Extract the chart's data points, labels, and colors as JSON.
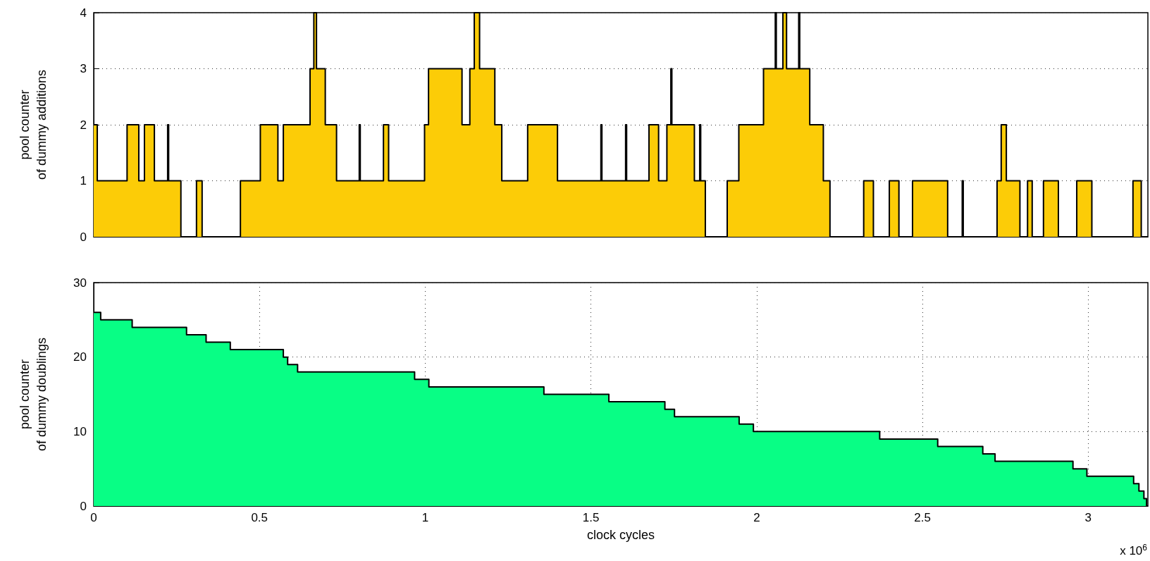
{
  "chart_data": [
    {
      "type": "area",
      "ylabel": "pool counter\nof dummy additions",
      "xlim": [
        0,
        3.18
      ],
      "xticks": [
        0,
        0.5,
        1,
        1.5,
        2,
        2.5,
        3
      ],
      "ylim": [
        0,
        4
      ],
      "yticks": [
        0,
        1,
        2,
        3,
        4
      ],
      "grid": "y",
      "tick_labels": "y",
      "series": [
        {
          "color": "#fccc07",
          "x": [
            0,
            0.0107,
            0.1006,
            0.136,
            0.153,
            0.183,
            0.223,
            0.226,
            0.263,
            0.31,
            0.327,
            0.4425,
            0.5026,
            0.5556,
            0.572,
            0.6526,
            0.664,
            0.672,
            0.6985,
            0.7325,
            0.801,
            0.804,
            0.874,
            0.8896,
            0.998,
            1.01,
            1.111,
            1.1346,
            1.148,
            1.164,
            1.21,
            1.231,
            1.309,
            1.399,
            1.53,
            1.533,
            1.6045,
            1.6075,
            1.675,
            1.704,
            1.729,
            1.741,
            1.744,
            1.812,
            1.828,
            1.831,
            1.845,
            1.911,
            1.946,
            2.0205,
            2.056,
            2.059,
            2.079,
            2.09,
            2.1267,
            2.1297,
            2.16,
            2.201,
            2.221,
            2.3227,
            2.352,
            2.4,
            2.429,
            2.47,
            2.576,
            2.62,
            2.623,
            2.725,
            2.7375,
            2.753,
            2.794,
            2.817,
            2.831,
            2.865,
            2.91,
            2.9654,
            3.011,
            3.135,
            3.16,
            3.18
          ],
          "values": [
            2,
            1,
            2,
            1,
            2,
            1,
            2,
            1,
            0,
            1,
            0,
            1,
            2,
            1,
            2,
            3,
            4,
            3,
            2,
            1,
            2,
            1,
            2,
            1,
            2,
            3,
            2,
            3,
            4,
            3,
            2,
            1,
            2,
            1,
            2,
            1,
            2,
            1,
            2,
            1,
            2,
            3,
            2,
            1,
            2,
            1,
            0,
            1,
            2,
            3,
            4,
            3,
            4,
            3,
            4,
            3,
            2,
            1,
            0,
            1,
            0,
            1,
            0,
            1,
            0,
            1,
            0,
            1,
            2,
            1,
            0,
            1,
            0,
            1,
            0,
            1,
            0,
            1,
            0,
            0
          ]
        }
      ]
    },
    {
      "type": "area",
      "xlabel": "clock cycles",
      "ylabel": "pool counter\nof dummy doublings",
      "annotations": [
        "x 10$^{6}$"
      ],
      "xlim": [
        0,
        3.18
      ],
      "xticks": [
        0,
        0.5,
        1,
        1.5,
        2,
        2.5,
        3
      ],
      "ylim": [
        0,
        30
      ],
      "yticks": [
        0,
        10,
        20,
        30
      ],
      "grid": true,
      "series": [
        {
          "color": "#08fe85",
          "x": [
            0,
            0.021,
            0.116,
            0.28,
            0.339,
            0.412,
            0.572,
            0.585,
            0.615,
            0.968,
            1.011,
            1.358,
            1.554,
            1.723,
            1.752,
            1.947,
            1.99,
            2.371,
            2.546,
            2.682,
            2.719,
            2.954,
            2.996,
            3.137,
            3.153,
            3.168,
            3.176,
            3.18
          ],
          "values": [
            26,
            25,
            24,
            23,
            22,
            21,
            20,
            19,
            18,
            17,
            16,
            15,
            14,
            13,
            12,
            11,
            10,
            9,
            8,
            7,
            6,
            5,
            4,
            3,
            2,
            1,
            0,
            0
          ]
        }
      ]
    }
  ]
}
